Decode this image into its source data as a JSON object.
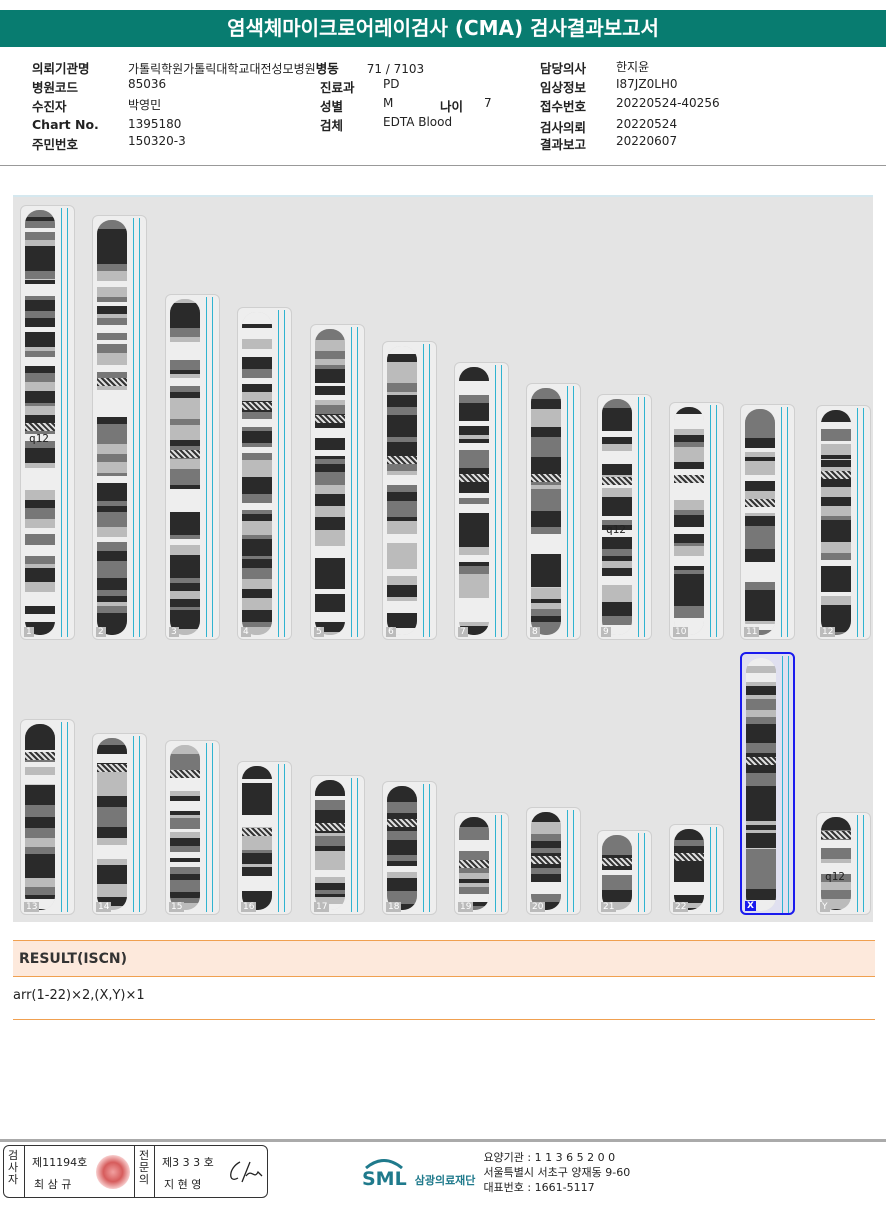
{
  "title": "염색체마이크로어레이검사 (CMA) 검사결과보고서",
  "patient": [
    {
      "label": "의뢰기관명",
      "value": "가톨릭학원가톨릭대학교대전성모병원"
    },
    {
      "label": "병동",
      "value": "71 / 7103"
    },
    {
      "label": "담당의사",
      "value": "한지윤"
    },
    {
      "label": "병원코드",
      "value": "85036"
    },
    {
      "label": "진료과",
      "value": "PD"
    },
    {
      "label": "임상정보",
      "value": "I87JZ0LH0"
    },
    {
      "label": "수진자",
      "value": "박영민"
    },
    {
      "label": "성별",
      "value": "M"
    },
    {
      "label": "나이",
      "value": "7"
    },
    {
      "label": "접수번호",
      "value": "20220524-40256"
    },
    {
      "label": "Chart No.",
      "value": "1395180"
    },
    {
      "label": "검체",
      "value": "EDTA Blood"
    },
    {
      "label": "검사의뢰",
      "value": "20220524"
    },
    {
      "label": "주민번호",
      "value": "150320-3"
    },
    {
      "label": "결과보고",
      "value": "20220607"
    }
  ],
  "karyogram": {
    "chromosomes": [
      "1",
      "2",
      "3",
      "4",
      "5",
      "6",
      "7",
      "8",
      "9",
      "10",
      "11",
      "12",
      "13",
      "14",
      "15",
      "16",
      "17",
      "18",
      "19",
      "20",
      "21",
      "22",
      "X",
      "Y"
    ],
    "selected": "X",
    "annotations": [
      {
        "chromosome": "1",
        "label": "q12"
      },
      {
        "chromosome": "9",
        "label": "q12"
      },
      {
        "chromosome": "Y",
        "label": "q12"
      }
    ]
  },
  "result": {
    "heading": "RESULT(ISCN)",
    "value": "arr(1-22)×2,(X,Y)×1"
  },
  "footer": {
    "examiner_role": "검사자",
    "examiner_no": "제11194호",
    "examiner_name": "최 삼 규",
    "specialist_role": "전문의",
    "specialist_no": "제3 3 3 호",
    "specialist_name": "지 현 영",
    "logo": "SML",
    "org_name": "삼광의료재단",
    "code": "요양기관 : 1 1 3 6 5 2 0 0",
    "address": "서울특별시 서초구 양재동 9-60",
    "phone": "대표번호 : 1661-5117"
  }
}
